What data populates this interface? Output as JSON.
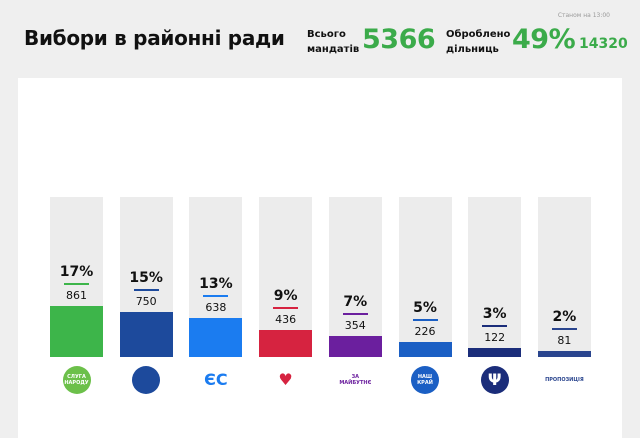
{
  "header": {
    "title": "Вибори в районні ради",
    "as_of": "Станом на 13:00",
    "mandates_label_1": "Всього",
    "mandates_label_2": "мандатів",
    "mandates_total": "5366",
    "processed_label_1": "Оброблено",
    "processed_label_2": "дільниць",
    "processed_pct": "49%",
    "precincts": "14320"
  },
  "parties": [
    {
      "logo": "СЛУГА НАРОДУ",
      "pct": "17%",
      "seats": "861",
      "share": 17,
      "color": "#3db54a",
      "logo_bg": "#6cc04a"
    },
    {
      "logo": "",
      "pct": "15%",
      "seats": "750",
      "share": 15,
      "color": "#1d4a9c",
      "logo_bg": "#1d4a9c"
    },
    {
      "logo": "ЄС",
      "pct": "13%",
      "seats": "638",
      "share": 13,
      "color": "#1b7cf0",
      "logo_bg": "#ffffff"
    },
    {
      "logo": "♥",
      "pct": "9%",
      "seats": "436",
      "share": 9,
      "color": "#d62340",
      "logo_bg": "#ffffff"
    },
    {
      "logo": "ЗА МАЙБУТНЄ",
      "pct": "7%",
      "seats": "354",
      "share": 7,
      "color": "#6b1f9e",
      "logo_bg": "#ffffff"
    },
    {
      "logo": "НАШ КРАЙ",
      "pct": "5%",
      "seats": "226",
      "share": 5,
      "color": "#1b5fc4",
      "logo_bg": "#1b5fc4"
    },
    {
      "logo": "Ψ",
      "pct": "3%",
      "seats": "122",
      "share": 3,
      "color": "#1b2d7a",
      "logo_bg": "#1b2d7a"
    },
    {
      "logo": "ПРОПОЗИЦІЯ",
      "pct": "2%",
      "seats": "81",
      "share": 2,
      "color": "#2a458e",
      "logo_bg": "#ffffff"
    }
  ]
}
